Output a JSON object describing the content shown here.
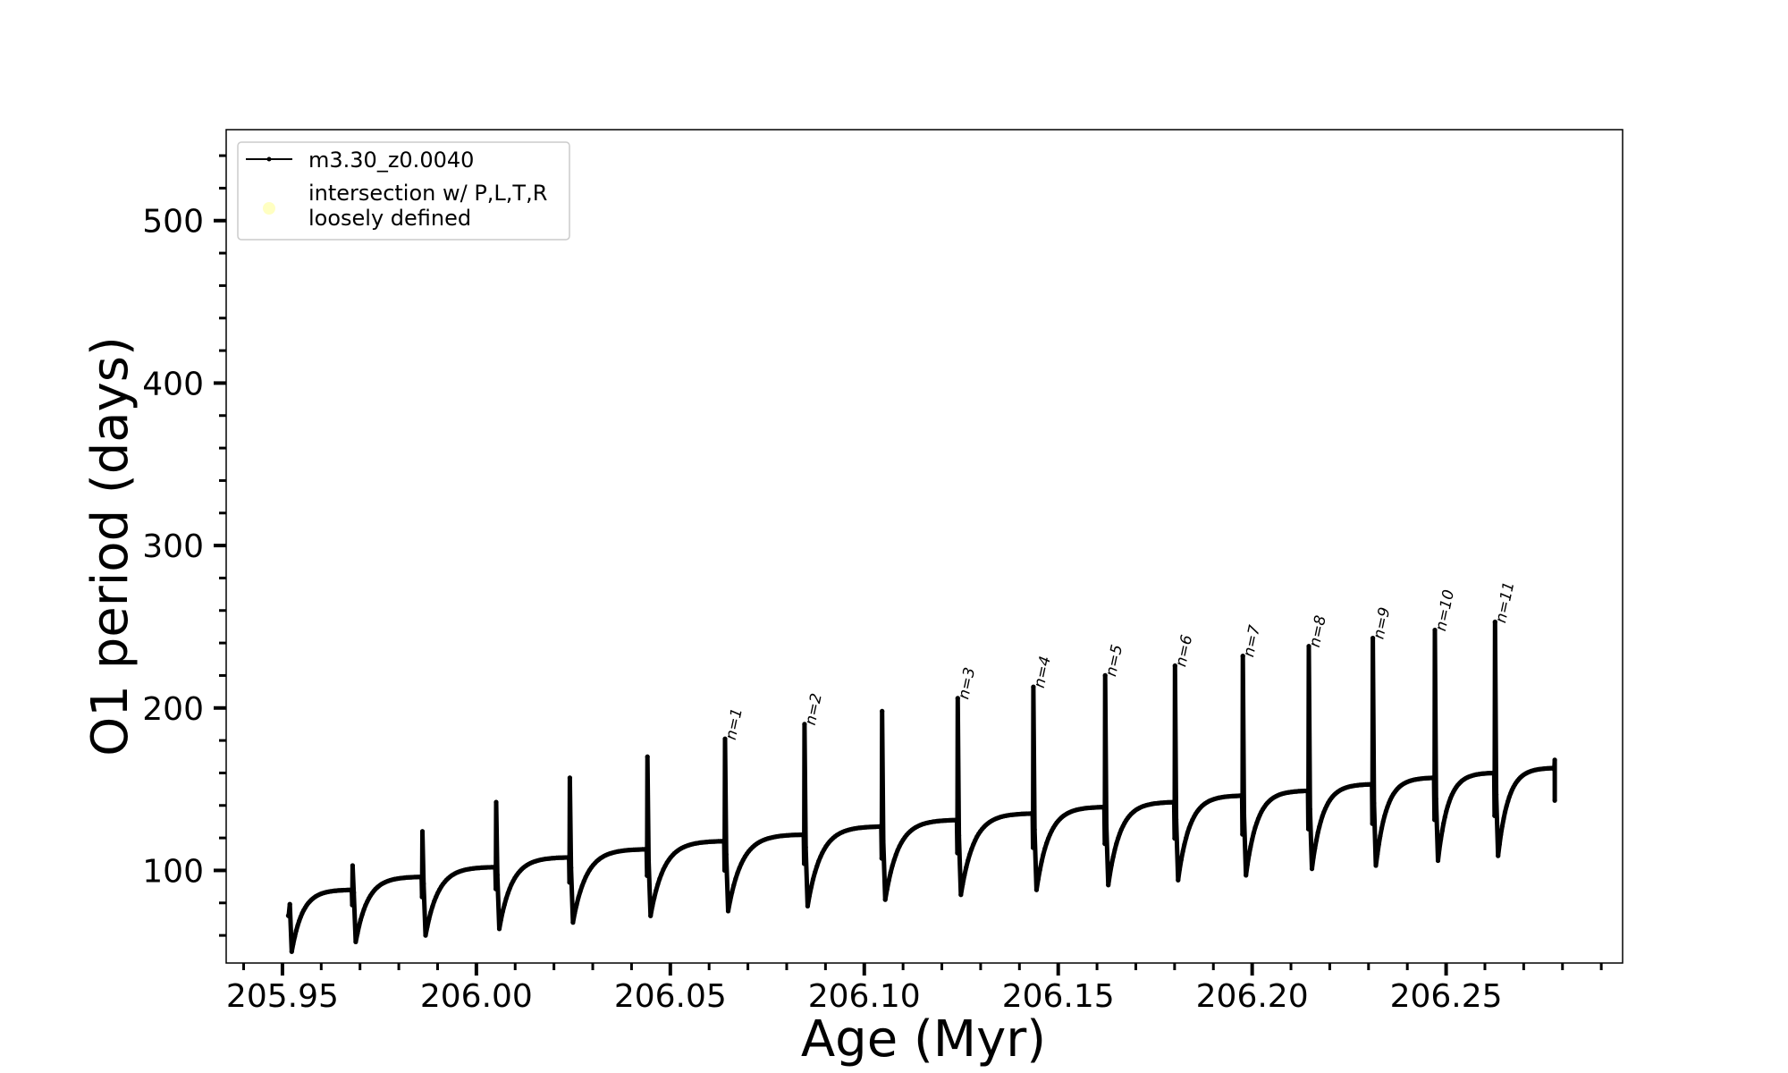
{
  "chart_data": {
    "type": "line",
    "xlabel": "Age (Myr)",
    "ylabel": "O1 period (days)",
    "xlim": [
      205.9355,
      206.2955
    ],
    "ylim": [
      43,
      556
    ],
    "x_major_ticks": [
      205.95,
      206.0,
      206.05,
      206.1,
      206.15,
      206.2,
      206.25
    ],
    "x_tick_labels": [
      "205.95",
      "206.00",
      "206.05",
      "206.10",
      "206.15",
      "206.20",
      "206.25"
    ],
    "x_minor_step": 0.01,
    "y_major_ticks": [
      100,
      200,
      300,
      400,
      500
    ],
    "y_tick_labels": [
      "100",
      "200",
      "300",
      "400",
      "500"
    ],
    "y_minor_step": 20,
    "grid": false,
    "legend": {
      "placement": "upper-left",
      "entries": [
        {
          "label": "m3.30_z0.0040",
          "style": "black-line-dot"
        },
        {
          "label": "intersection w/ P,L,T,R\nloosely defined",
          "style": "yellow-circle"
        }
      ]
    },
    "series": [
      {
        "name": "m3.30_z0.0040",
        "color": "#000000",
        "pulses": [
          {
            "x": 205.9515,
            "peak": 72,
            "trough": 50,
            "plateau": 88
          },
          {
            "x": 205.968,
            "peak": 103,
            "trough": 56,
            "plateau": 96
          },
          {
            "x": 205.986,
            "peak": 124,
            "trough": 60,
            "plateau": 102
          },
          {
            "x": 206.005,
            "peak": 142,
            "trough": 64,
            "plateau": 108
          },
          {
            "x": 206.024,
            "peak": 157,
            "trough": 68,
            "plateau": 113
          },
          {
            "x": 206.044,
            "peak": 170,
            "trough": 72,
            "plateau": 118
          },
          {
            "x": 206.064,
            "peak": 181,
            "trough": 75,
            "plateau": 122
          },
          {
            "x": 206.0845,
            "peak": 190,
            "trough": 78,
            "plateau": 127
          },
          {
            "x": 206.1045,
            "peak": 198,
            "trough": 82,
            "plateau": 131
          },
          {
            "x": 206.124,
            "peak": 206,
            "trough": 85,
            "plateau": 135
          },
          {
            "x": 206.1435,
            "peak": 213,
            "trough": 88,
            "plateau": 139
          },
          {
            "x": 206.162,
            "peak": 220,
            "trough": 91,
            "plateau": 142
          },
          {
            "x": 206.18,
            "peak": 226,
            "trough": 94,
            "plateau": 146
          },
          {
            "x": 206.1975,
            "peak": 232,
            "trough": 97,
            "plateau": 149
          },
          {
            "x": 206.2145,
            "peak": 238,
            "trough": 101,
            "plateau": 153
          },
          {
            "x": 206.231,
            "peak": 243,
            "trough": 103,
            "plateau": 157
          },
          {
            "x": 206.247,
            "peak": 248,
            "trough": 106,
            "plateau": 160
          },
          {
            "x": 206.2625,
            "peak": 253,
            "trough": 109,
            "plateau": 163
          }
        ],
        "end_x": 206.278,
        "end_values": [
          168,
          143
        ]
      }
    ],
    "annotations": [
      {
        "text": "n=1",
        "x": 206.064,
        "y": 181
      },
      {
        "text": "n=2",
        "x": 206.0845,
        "y": 190
      },
      {
        "text": "n=3",
        "x": 206.124,
        "y": 206
      },
      {
        "text": "n=4",
        "x": 206.1435,
        "y": 213
      },
      {
        "text": "n=5",
        "x": 206.162,
        "y": 220
      },
      {
        "text": "n=6",
        "x": 206.18,
        "y": 226
      },
      {
        "text": "n=7",
        "x": 206.1975,
        "y": 232
      },
      {
        "text": "n=8",
        "x": 206.2145,
        "y": 238
      },
      {
        "text": "n=9",
        "x": 206.231,
        "y": 243
      },
      {
        "text": "n=10",
        "x": 206.247,
        "y": 248
      },
      {
        "text": "n=11",
        "x": 206.2625,
        "y": 253
      }
    ],
    "colors": {
      "line": "#000000",
      "marker_intersection": "#ffff99",
      "frame": "#000000"
    }
  }
}
